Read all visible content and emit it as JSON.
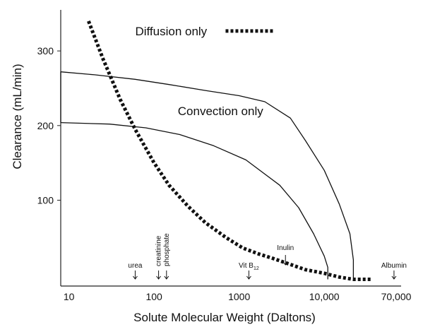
{
  "chart_data": {
    "type": "line",
    "title": "",
    "xlabel": "Solute Molecular Weight (Daltons)",
    "ylabel": "Clearance (mL/min)",
    "xscale": "log",
    "x_tick_labels": [
      "10",
      "100",
      "1000",
      "10,000",
      "70,000"
    ],
    "x_ticks": [
      10,
      100,
      1000,
      10000,
      70000
    ],
    "y_ticks": [
      100,
      200,
      300
    ],
    "y_tick_labels": [
      "100",
      "200",
      "300"
    ],
    "xlim": [
      8,
      80000
    ],
    "ylim": [
      -15,
      355
    ],
    "grid": false,
    "series": [
      {
        "name": "Diffusion only",
        "style": "dotted",
        "x": [
          17,
          25,
          40,
          60,
          100,
          150,
          250,
          400,
          700,
          1100,
          1700,
          2500,
          4000,
          6000,
          10000,
          15000,
          22000,
          35000
        ],
        "y": [
          340,
          290,
          235,
          195,
          150,
          120,
          92,
          70,
          50,
          36,
          28,
          22,
          14,
          7,
          2,
          -3,
          -6,
          -6
        ]
      },
      {
        "name": "Convection only",
        "style": "solid",
        "bands": [
          {
            "x": [
              8,
              20,
              60,
              150,
              400,
              1000,
              2000,
              4000,
              6000,
              10000,
              15000,
              20000,
              22000,
              22000
            ],
            "y": [
              272,
              268,
              262,
              255,
              247,
              240,
              232,
              210,
              180,
              140,
              95,
              55,
              20,
              -6
            ]
          },
          {
            "x": [
              8,
              30,
              80,
              200,
              500,
              1200,
              3000,
              5000,
              7500,
              10000,
              11000,
              11000
            ],
            "y": [
              204,
              202,
              197,
              188,
              173,
              154,
              120,
              90,
              55,
              25,
              10,
              -6
            ]
          }
        ]
      }
    ],
    "annotations": [
      {
        "text": "Diffusion only",
        "x": 60,
        "y": 321
      },
      {
        "text": "Convection only",
        "x": 190,
        "y": 214
      }
    ],
    "markers": [
      {
        "label": "urea",
        "x": 60
      },
      {
        "label": "creatinine",
        "x": 113
      },
      {
        "label": "phosphate",
        "x": 140
      },
      {
        "label": "Vit B",
        "subscript": "12",
        "x": 1300
      },
      {
        "label": "Inulin",
        "x": 3500
      },
      {
        "label": "Albumin",
        "x": 66000
      }
    ]
  }
}
